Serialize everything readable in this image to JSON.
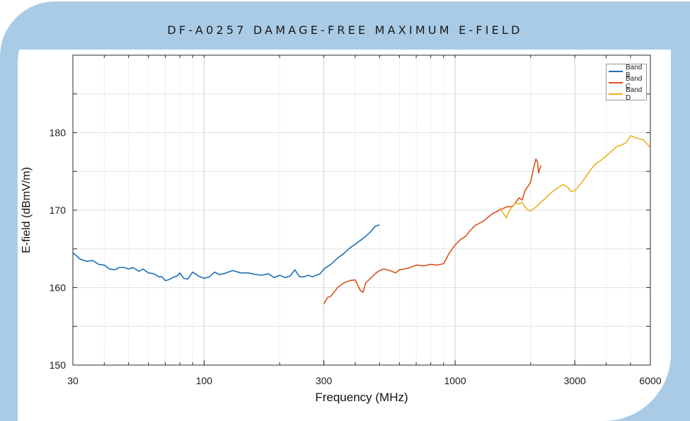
{
  "chart_data": {
    "type": "line",
    "title": "DF-A0257 DAMAGE-FREE MAXIMUM E-FIELD",
    "xlabel": "Frequency (MHz)",
    "ylabel": "E-field (dBmV/m)",
    "x_scale": "log",
    "xlim": [
      30,
      6000
    ],
    "ylim": [
      150,
      190
    ],
    "x_ticks": [
      30,
      100,
      300,
      1000,
      3000,
      6000
    ],
    "x_tick_labels": [
      "30",
      "100",
      "300",
      "1000",
      "3000",
      "6000"
    ],
    "y_ticks": [
      150,
      160,
      170,
      180
    ],
    "y_tick_labels": [
      "150",
      "160",
      "170",
      "180"
    ],
    "grid": true,
    "legend_position": "top-right",
    "series": [
      {
        "name": "Band B",
        "color": "#1f6fb5",
        "points": [
          [
            30,
            164.5
          ],
          [
            31,
            164.1
          ],
          [
            32,
            163.7
          ],
          [
            34,
            163.4
          ],
          [
            36,
            163.5
          ],
          [
            38,
            163.0
          ],
          [
            40,
            162.9
          ],
          [
            42,
            162.4
          ],
          [
            44,
            162.3
          ],
          [
            46,
            162.6
          ],
          [
            48,
            162.6
          ],
          [
            50,
            162.4
          ],
          [
            52,
            162.6
          ],
          [
            55,
            162.1
          ],
          [
            57,
            162.4
          ],
          [
            60,
            161.9
          ],
          [
            63,
            161.8
          ],
          [
            66,
            161.4
          ],
          [
            68,
            161.4
          ],
          [
            70,
            160.9
          ],
          [
            72,
            161.0
          ],
          [
            75,
            161.3
          ],
          [
            78,
            161.5
          ],
          [
            80,
            161.9
          ],
          [
            83,
            161.2
          ],
          [
            86,
            161.1
          ],
          [
            90,
            162.0
          ],
          [
            95,
            161.5
          ],
          [
            100,
            161.2
          ],
          [
            105,
            161.4
          ],
          [
            110,
            162.0
          ],
          [
            115,
            161.7
          ],
          [
            120,
            161.8
          ],
          [
            130,
            162.2
          ],
          [
            140,
            161.9
          ],
          [
            150,
            161.9
          ],
          [
            160,
            161.7
          ],
          [
            170,
            161.6
          ],
          [
            180,
            161.8
          ],
          [
            190,
            161.3
          ],
          [
            200,
            161.6
          ],
          [
            210,
            161.3
          ],
          [
            220,
            161.5
          ],
          [
            230,
            162.3
          ],
          [
            240,
            161.4
          ],
          [
            250,
            161.4
          ],
          [
            260,
            161.6
          ],
          [
            270,
            161.4
          ],
          [
            280,
            161.6
          ],
          [
            290,
            161.8
          ],
          [
            300,
            162.4
          ],
          [
            320,
            163.0
          ],
          [
            340,
            163.8
          ],
          [
            360,
            164.4
          ],
          [
            380,
            165.1
          ],
          [
            400,
            165.6
          ],
          [
            420,
            166.1
          ],
          [
            440,
            166.6
          ],
          [
            460,
            167.2
          ],
          [
            480,
            167.9
          ],
          [
            500,
            168.1
          ]
        ]
      },
      {
        "name": "Band C",
        "color": "#d95319",
        "points": [
          [
            300,
            157.9
          ],
          [
            310,
            158.7
          ],
          [
            320,
            158.9
          ],
          [
            340,
            160.0
          ],
          [
            360,
            160.6
          ],
          [
            380,
            160.9
          ],
          [
            400,
            161.0
          ],
          [
            420,
            159.6
          ],
          [
            430,
            159.4
          ],
          [
            440,
            160.6
          ],
          [
            460,
            161.2
          ],
          [
            480,
            161.8
          ],
          [
            500,
            162.2
          ],
          [
            520,
            162.4
          ],
          [
            550,
            162.2
          ],
          [
            580,
            161.9
          ],
          [
            600,
            162.3
          ],
          [
            650,
            162.5
          ],
          [
            700,
            162.9
          ],
          [
            750,
            162.8
          ],
          [
            800,
            163.0
          ],
          [
            850,
            162.9
          ],
          [
            900,
            163.1
          ],
          [
            950,
            164.5
          ],
          [
            1000,
            165.5
          ],
          [
            1050,
            166.2
          ],
          [
            1100,
            166.6
          ],
          [
            1150,
            167.4
          ],
          [
            1200,
            168.0
          ],
          [
            1300,
            168.6
          ],
          [
            1400,
            169.5
          ],
          [
            1500,
            170.0
          ],
          [
            1600,
            170.4
          ],
          [
            1700,
            170.5
          ],
          [
            1800,
            171.6
          ],
          [
            1850,
            171.3
          ],
          [
            1900,
            172.5
          ],
          [
            2000,
            173.6
          ],
          [
            2050,
            175.3
          ],
          [
            2100,
            176.6
          ],
          [
            2130,
            176.2
          ],
          [
            2150,
            174.8
          ],
          [
            2200,
            175.8
          ]
        ]
      },
      {
        "name": "Band D",
        "color": "#edb120",
        "points": [
          [
            1500,
            170.3
          ],
          [
            1550,
            169.7
          ],
          [
            1600,
            169.0
          ],
          [
            1650,
            170.0
          ],
          [
            1700,
            170.6
          ],
          [
            1750,
            170.9
          ],
          [
            1800,
            170.8
          ],
          [
            1850,
            171.0
          ],
          [
            1900,
            170.4
          ],
          [
            1950,
            170.0
          ],
          [
            2000,
            169.9
          ],
          [
            2100,
            170.4
          ],
          [
            2200,
            171.0
          ],
          [
            2300,
            171.6
          ],
          [
            2400,
            172.2
          ],
          [
            2500,
            172.6
          ],
          [
            2600,
            173.0
          ],
          [
            2700,
            173.3
          ],
          [
            2800,
            173.0
          ],
          [
            2900,
            172.4
          ],
          [
            3000,
            172.5
          ],
          [
            3200,
            173.6
          ],
          [
            3400,
            174.8
          ],
          [
            3600,
            175.9
          ],
          [
            3800,
            176.4
          ],
          [
            4000,
            177.0
          ],
          [
            4200,
            177.6
          ],
          [
            4400,
            178.2
          ],
          [
            4600,
            178.4
          ],
          [
            4800,
            178.7
          ],
          [
            5000,
            179.6
          ],
          [
            5200,
            179.4
          ],
          [
            5400,
            179.2
          ],
          [
            5600,
            179.1
          ],
          [
            5800,
            178.6
          ],
          [
            6000,
            178.1
          ]
        ]
      }
    ]
  },
  "colors": {
    "frame": "#a9cbe5",
    "grid": "#e2e2e2",
    "axis": "#2b2b2b"
  }
}
